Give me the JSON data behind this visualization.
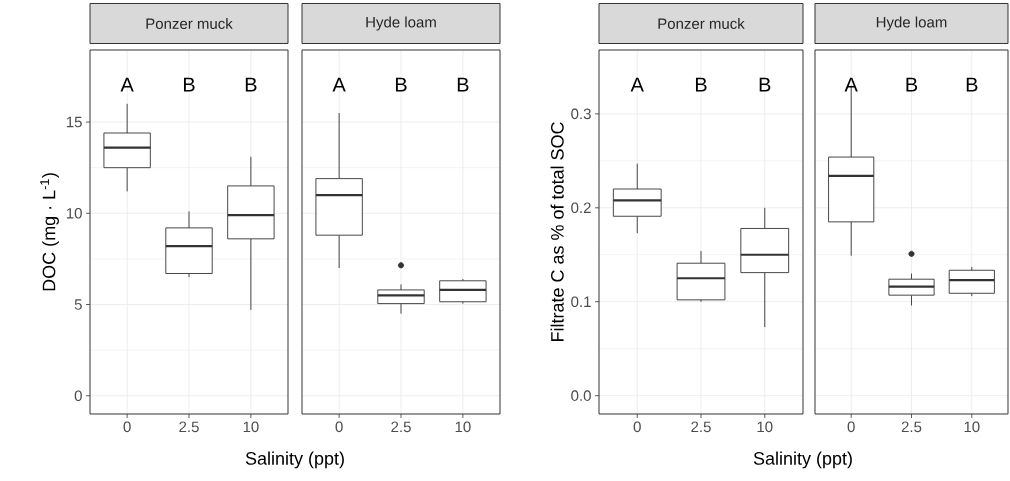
{
  "chart_data": [
    {
      "type": "box",
      "title": "Ponzer muck",
      "ylabel": "DOC (mg · L$^{-1}$)",
      "xlabel": "Salinity (ppt)",
      "categories": [
        "0",
        "2.5",
        "10"
      ],
      "boxes": [
        {
          "low": 11.2,
          "q1": 12.5,
          "median": 13.6,
          "q3": 14.4,
          "high": 16.0
        },
        {
          "low": 6.5,
          "q1": 6.7,
          "median": 8.2,
          "q3": 9.2,
          "high": 10.1
        },
        {
          "low": 4.7,
          "q1": 8.6,
          "median": 9.9,
          "q3": 11.5,
          "high": 13.1
        }
      ],
      "annotations": [
        "A",
        "B",
        "B"
      ],
      "ylim": [
        -1.0,
        18.95
      ],
      "yticks": [
        0,
        5,
        10,
        15
      ],
      "grid": true
    },
    {
      "type": "box",
      "title": "Hyde loam",
      "categories": [
        "0",
        "2.5",
        "10"
      ],
      "boxes": [
        {
          "low": 7.0,
          "q1": 8.8,
          "median": 11.0,
          "q3": 11.9,
          "high": 15.5
        },
        {
          "low": 4.5,
          "q1": 5.05,
          "median": 5.5,
          "q3": 5.8,
          "high": 6.1,
          "outliers": [
            7.15
          ]
        },
        {
          "low": 5.05,
          "q1": 5.15,
          "median": 5.8,
          "q3": 6.3,
          "high": 6.4
        }
      ],
      "annotations": [
        "A",
        "B",
        "B"
      ],
      "ylim": [
        -1.0,
        18.95
      ],
      "yticks": [
        0,
        5,
        10,
        15
      ],
      "tick_labels": "x",
      "grid": true
    },
    {
      "type": "box",
      "title": "Ponzer muck",
      "ylabel": "Filtrate C as % of total SOC",
      "xlabel": "Salinity (ppt)",
      "categories": [
        "0",
        "2.5",
        "10"
      ],
      "boxes": [
        {
          "low": 0.173,
          "q1": 0.191,
          "median": 0.208,
          "q3": 0.22,
          "high": 0.247
        },
        {
          "low": 0.1,
          "q1": 0.102,
          "median": 0.125,
          "q3": 0.141,
          "high": 0.154
        },
        {
          "low": 0.073,
          "q1": 0.131,
          "median": 0.15,
          "q3": 0.178,
          "high": 0.2
        }
      ],
      "annotations": [
        "A",
        "B",
        "B"
      ],
      "ylim": [
        -0.0195,
        0.368
      ],
      "yticks": [
        {
          "value": 0,
          "label": "0.0"
        },
        0.1,
        0.2,
        0.3
      ],
      "grid": true
    },
    {
      "type": "box",
      "title": "Hyde loam",
      "categories": [
        "0",
        "2.5",
        "10"
      ],
      "boxes": [
        {
          "low": 0.149,
          "q1": 0.185,
          "median": 0.234,
          "q3": 0.254,
          "high": 0.33
        },
        {
          "low": 0.096,
          "q1": 0.107,
          "median": 0.116,
          "q3": 0.124,
          "high": 0.13,
          "outliers": [
            0.151
          ]
        },
        {
          "low": 0.106,
          "q1": 0.109,
          "median": 0.123,
          "q3": 0.1335,
          "high": 0.137
        }
      ],
      "annotations": [
        "A",
        "B",
        "B"
      ],
      "ylim": [
        -0.0195,
        0.368
      ],
      "yticks": [
        0,
        0.1,
        0.2,
        0.3
      ],
      "tick_labels": "x",
      "grid": true
    }
  ]
}
